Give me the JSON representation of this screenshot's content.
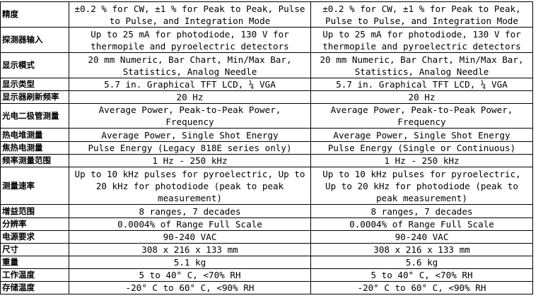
{
  "table": {
    "rows": [
      [
        "精度",
        "±0.2 % for CW, ±1 % for Peak to Peak, Pulse to Pulse, and Integration Mode",
        "±0.2 % for CW, ±1 % for Peak to Peak, Pulse to Pulse, and Integration Mode"
      ],
      [
        "探测器输入",
        "Up to 25 mA for photodiode, 130 V for thermopile and pyroelectric detectors",
        "Up to 25 mA for photodiode, 130 V for thermopile and pyroelectric detectors"
      ],
      [
        "显示模式",
        "20 mm Numeric, Bar Chart, Min/Max Bar, Statistics, Analog Needle",
        "20 mm Numeric, Bar Chart, Min/Max Bar, Statistics, Analog Needle"
      ],
      [
        "显示类型",
        "5.7 in. Graphical TFT LCD, ¼ VGA",
        "5.7 in. Graphical TFT LCD, ¼ VGA"
      ],
      [
        "显示器刷新频率",
        "20 Hz",
        "20 Hz"
      ],
      [
        "光电二极管测量",
        "Average Power, Peak-to-Peak Power, Frequency",
        "Average Power, Peak-to-Peak Power, Frequency"
      ],
      [
        "热电堆测量",
        "Average Power, Single Shot Energy",
        "Average Power, Single Shot Energy"
      ],
      [
        "焦热电测量",
        "Pulse Energy (Legacy 818E series only)",
        "Pulse Energy (Single or Continuous)"
      ],
      [
        "频率测量范围",
        "1 Hz - 250 kHz",
        "1 Hz - 250 kHz"
      ],
      [
        "测量速率",
        "Up to 10 kHz pulses for pyroelectric, Up to 20 kHz for photodiode (peak to peak measurement)",
        "Up to 10 kHz pulses for pyroelectric, Up to 20 kHz for photodiode (peak to peak measurement)"
      ],
      [
        "增益范围",
        "8 ranges, 7 decades",
        "8 ranges, 7 decades"
      ],
      [
        "分辨率",
        "0.0004% of Range Full Scale",
        "0.0004% of Range Full Scale"
      ],
      [
        "电源要求",
        "90-240 VAC",
        "90-240 VAC"
      ],
      [
        "尺寸",
        "308 x 216 x 133 mm",
        "308 x 216 x 133 mm"
      ],
      [
        "重量",
        "5.1 kg",
        "5.6 kg"
      ],
      [
        "工作温度",
        "5 to 40° C, <70% RH",
        "5 to 40° C, <70% RH"
      ],
      [
        "存储温度",
        "-20° C to 60° C, <90% RH",
        "-20° C to 60° C, <90% RH"
      ]
    ]
  }
}
